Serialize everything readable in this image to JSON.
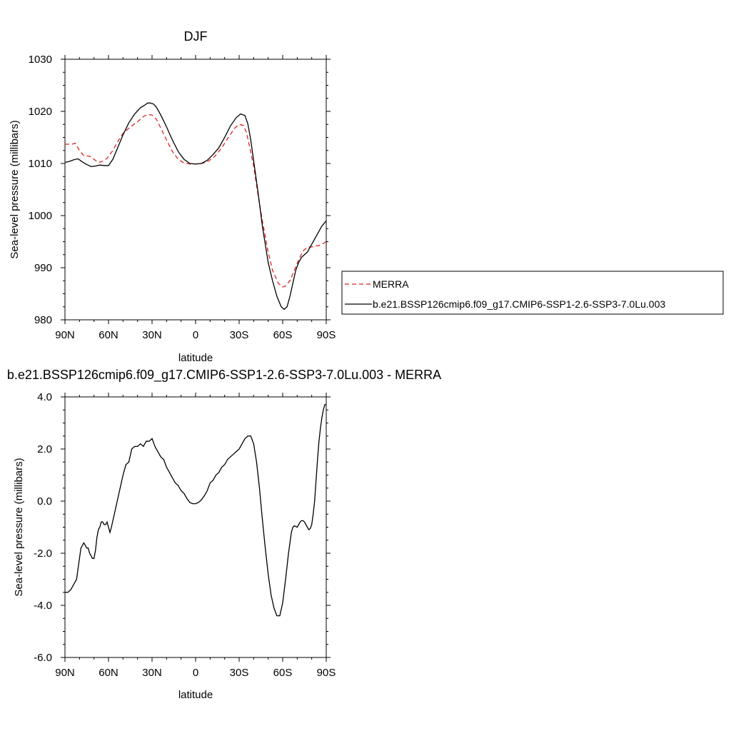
{
  "chart_data": [
    {
      "type": "line",
      "title": "DJF",
      "xlabel": "latitude",
      "ylabel": "Sea-level pressure (millibars)",
      "xlim": [
        90,
        -90
      ],
      "ylim": [
        980,
        1030
      ],
      "x_ticks": [
        90,
        60,
        30,
        0,
        -30,
        -60,
        -90
      ],
      "x_tick_labels": [
        "90N",
        "60N",
        "30N",
        "0",
        "30S",
        "60S",
        "90S"
      ],
      "y_ticks": [
        980,
        990,
        1000,
        1010,
        1020,
        1030
      ],
      "y_tick_labels": [
        "980",
        "990",
        "1000",
        "1010",
        "1020",
        "1030"
      ],
      "legend_placement": "right",
      "series": [
        {
          "name": "MERRA",
          "color": "#e02020",
          "dash": "dashed",
          "x": [
            90,
            85,
            83,
            80,
            77,
            73,
            70,
            67,
            64,
            61,
            57,
            53,
            50,
            45,
            40,
            36,
            33,
            30,
            27,
            24,
            20,
            16,
            12,
            8,
            4,
            0,
            -4,
            -8,
            -13,
            -18,
            -23,
            -27,
            -30,
            -33,
            -35,
            -37,
            -40,
            -43,
            -46,
            -50,
            -53,
            -57,
            -60,
            -62,
            -65,
            -68,
            -71,
            -74,
            -77,
            -80,
            -83,
            -86,
            -90
          ],
          "y": [
            1013.7,
            1013.7,
            1013.9,
            1012.5,
            1011.5,
            1011.4,
            1010.8,
            1010.2,
            1010.4,
            1011.0,
            1012.5,
            1014.5,
            1015.8,
            1017.0,
            1018.0,
            1019.0,
            1019.4,
            1019.3,
            1018.5,
            1016.8,
            1014.5,
            1012.3,
            1010.8,
            1010.1,
            1009.9,
            1009.9,
            1010.0,
            1010.3,
            1011.3,
            1013.0,
            1015.2,
            1016.8,
            1017.5,
            1017.3,
            1016.0,
            1013.5,
            1009.5,
            1004.0,
            999.0,
            993.0,
            989.5,
            987.0,
            986.3,
            986.5,
            987.5,
            989.5,
            991.5,
            993.2,
            993.9,
            994.0,
            994.2,
            994.3,
            995.0
          ]
        },
        {
          "name": "b.e21.BSSP126cmip6.f09_g17.CMIP6-SSP1-2.6-SSP3-7.0Lu.003",
          "color": "#000000",
          "dash": "solid",
          "x": [
            90,
            87,
            84,
            81,
            78,
            75,
            72,
            69,
            66,
            63,
            60,
            57,
            54,
            50,
            46,
            42,
            38,
            35,
            33,
            31,
            29,
            27,
            24,
            20,
            16,
            12,
            8,
            4,
            0,
            -4,
            -8,
            -12,
            -16,
            -20,
            -24,
            -28,
            -31,
            -34,
            -36,
            -38,
            -40,
            -43,
            -46,
            -50,
            -53,
            -56,
            -59,
            -61,
            -63,
            -65,
            -67,
            -69,
            -71,
            -73,
            -75,
            -77,
            -80,
            -83,
            -85,
            -87,
            -90
          ],
          "y": [
            1010.2,
            1010.4,
            1010.7,
            1010.9,
            1010.3,
            1009.8,
            1009.4,
            1009.5,
            1009.7,
            1009.6,
            1009.6,
            1010.8,
            1012.8,
            1015.5,
            1017.8,
            1019.5,
            1020.7,
            1021.2,
            1021.6,
            1021.6,
            1021.4,
            1020.8,
            1019.3,
            1017.0,
            1014.5,
            1012.3,
            1010.8,
            1010.0,
            1009.9,
            1010.0,
            1010.6,
            1011.7,
            1013.0,
            1015.0,
            1017.2,
            1018.8,
            1019.5,
            1019.2,
            1017.6,
            1014.5,
            1010.5,
            1004.5,
            998.0,
            991.0,
            987.5,
            984.5,
            982.5,
            982.0,
            982.5,
            984.5,
            987.0,
            989.5,
            991.0,
            992.0,
            992.5,
            993.0,
            994.5,
            996.0,
            997.0,
            998.0,
            999.0
          ]
        }
      ]
    },
    {
      "type": "line",
      "title": "b.e21.BSSP126cmip6.f09_g17.CMIP6-SSP1-2.6-SSP3-7.0Lu.003 - MERRA",
      "xlabel": "latitude",
      "ylabel": "Sea-level pressure (millibars)",
      "xlim": [
        90,
        -90
      ],
      "ylim": [
        -6.0,
        4.0
      ],
      "x_ticks": [
        90,
        60,
        30,
        0,
        -30,
        -60,
        -90
      ],
      "x_tick_labels": [
        "90N",
        "60N",
        "30N",
        "0",
        "30S",
        "60S",
        "90S"
      ],
      "y_ticks": [
        -6.0,
        -4.0,
        -2.0,
        0.0,
        2.0,
        4.0
      ],
      "y_tick_labels": [
        "-6.0",
        "-4.0",
        "-2.0",
        "0.0",
        "2.0",
        "4.0"
      ],
      "series": [
        {
          "color": "#000000",
          "dash": "solid",
          "x": [
            90,
            88,
            86,
            84,
            82,
            80,
            79,
            78,
            77,
            76,
            75,
            74,
            73,
            72,
            71,
            70,
            69,
            68,
            67,
            66,
            65,
            64,
            63,
            62,
            61,
            60,
            59,
            58,
            56,
            54,
            52,
            50,
            48,
            46,
            44,
            42,
            40,
            38,
            36,
            34,
            32,
            30,
            28,
            26,
            24,
            22,
            20,
            18,
            16,
            14,
            12,
            10,
            8,
            6,
            4,
            2,
            0,
            -2,
            -4,
            -6,
            -8,
            -10,
            -12,
            -14,
            -16,
            -18,
            -20,
            -22,
            -24,
            -26,
            -28,
            -30,
            -32,
            -34,
            -36,
            -38,
            -40,
            -42,
            -44,
            -46,
            -48,
            -50,
            -52,
            -54,
            -56,
            -58,
            -60,
            -62,
            -64,
            -65,
            -66,
            -67,
            -68,
            -70,
            -72,
            -73,
            -74,
            -75,
            -76,
            -77,
            -78,
            -79,
            -80,
            -81,
            -82,
            -83,
            -84,
            -85,
            -86,
            -87,
            -88,
            -89,
            -90
          ],
          "y": [
            -3.5,
            -3.5,
            -3.4,
            -3.2,
            -3.0,
            -2.2,
            -1.8,
            -1.7,
            -1.6,
            -1.7,
            -1.8,
            -1.8,
            -2.0,
            -2.1,
            -2.2,
            -2.2,
            -1.9,
            -1.4,
            -1.1,
            -1.0,
            -0.8,
            -0.8,
            -0.9,
            -0.9,
            -0.8,
            -1.0,
            -1.2,
            -1.0,
            -0.5,
            0.0,
            0.5,
            1.0,
            1.4,
            1.5,
            2.0,
            2.1,
            2.1,
            2.2,
            2.1,
            2.3,
            2.3,
            2.4,
            2.1,
            1.9,
            1.7,
            1.6,
            1.3,
            1.1,
            0.9,
            0.7,
            0.6,
            0.4,
            0.3,
            0.1,
            -0.05,
            -0.1,
            -0.1,
            -0.05,
            0.05,
            0.2,
            0.4,
            0.7,
            0.8,
            1.0,
            1.1,
            1.3,
            1.4,
            1.6,
            1.7,
            1.8,
            1.9,
            2.0,
            2.2,
            2.4,
            2.5,
            2.5,
            2.2,
            1.5,
            0.5,
            -0.7,
            -1.8,
            -2.8,
            -3.6,
            -4.1,
            -4.4,
            -4.4,
            -3.9,
            -3.0,
            -2.0,
            -1.6,
            -1.2,
            -1.0,
            -0.95,
            -1.0,
            -0.8,
            -0.75,
            -0.75,
            -0.8,
            -0.9,
            -1.0,
            -1.1,
            -1.05,
            -0.9,
            -0.5,
            0.0,
            0.8,
            1.6,
            2.3,
            2.8,
            3.2,
            3.5,
            3.7,
            3.7
          ]
        }
      ]
    }
  ]
}
